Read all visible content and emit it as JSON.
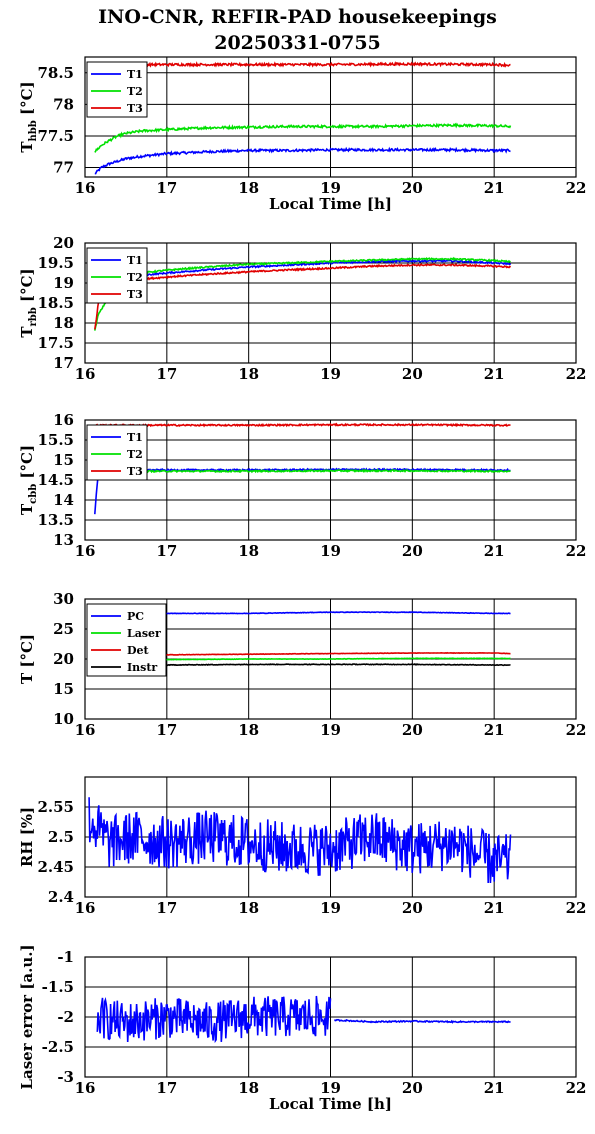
{
  "page": {
    "title_line1": "INO-CNR, REFIR-PAD housekeepings",
    "title_line2": "20250331-0755"
  },
  "chart_data": [
    {
      "id": "hbb",
      "type": "line",
      "ylabel": "T",
      "ylabel_sub": "hbb",
      "ylabel_unit": " [°C]",
      "xlabel": "Local Time [h]",
      "xlim": [
        16,
        22
      ],
      "ylim": [
        76.85,
        78.75
      ],
      "xticks": [
        16,
        17,
        18,
        19,
        20,
        21,
        22
      ],
      "yticks": [
        77,
        77.5,
        78,
        78.5
      ],
      "ytick_labels": [
        "77",
        "77.5",
        "78",
        "78.5"
      ],
      "grid": true,
      "legend": "top-left",
      "series": [
        {
          "name": "T1",
          "color": "#0000ff",
          "x": [
            16.12,
            16.2,
            16.3,
            16.4,
            16.5,
            16.7,
            17,
            17.5,
            18,
            18.5,
            19,
            19.5,
            20,
            20.5,
            21,
            21.2
          ],
          "y": [
            76.9,
            77,
            77.06,
            77.1,
            77.14,
            77.18,
            77.22,
            77.25,
            77.27,
            77.27,
            77.28,
            77.28,
            77.28,
            77.28,
            77.27,
            77.27
          ],
          "noise": 0.018
        },
        {
          "name": "T2",
          "color": "#00e000",
          "x": [
            16.12,
            16.2,
            16.3,
            16.4,
            16.5,
            16.7,
            17,
            17.5,
            18,
            18.5,
            19,
            19.5,
            20,
            20.5,
            21,
            21.2
          ],
          "y": [
            77.25,
            77.35,
            77.43,
            77.5,
            77.54,
            77.58,
            77.6,
            77.63,
            77.64,
            77.65,
            77.65,
            77.65,
            77.66,
            77.67,
            77.66,
            77.65
          ],
          "noise": 0.018
        },
        {
          "name": "T3",
          "color": "#e00000",
          "x": [
            16.12,
            16.5,
            17,
            18,
            19,
            20,
            21,
            21.2
          ],
          "y": [
            78.62,
            78.63,
            78.63,
            78.63,
            78.63,
            78.64,
            78.63,
            78.62
          ],
          "noise": 0.018
        }
      ]
    },
    {
      "id": "rbb",
      "type": "line",
      "ylabel": "T",
      "ylabel_sub": "rbb",
      "ylabel_unit": " [°C]",
      "xlabel": "",
      "xlim": [
        16,
        22
      ],
      "ylim": [
        17,
        20
      ],
      "xticks": [
        16,
        17,
        18,
        19,
        20,
        21,
        22
      ],
      "yticks": [
        17,
        17.5,
        18,
        18.5,
        19,
        19.5,
        20
      ],
      "ytick_labels": [
        "17",
        "17.5",
        "18",
        "18.5",
        "19",
        "19.5",
        "20"
      ],
      "grid": true,
      "legend": "top-left",
      "series": [
        {
          "name": "T1",
          "color": "#0000ff",
          "x": [
            16.45,
            17,
            17.5,
            18,
            18.5,
            19,
            19.5,
            20,
            20.5,
            21,
            21.2
          ],
          "y": [
            19.15,
            19.25,
            19.33,
            19.4,
            19.45,
            19.5,
            19.53,
            19.55,
            19.55,
            19.5,
            19.48
          ],
          "noise": 0.018
        },
        {
          "name": "T2",
          "color": "#00e000",
          "x": [
            16.12,
            16.14,
            16.16,
            16.45,
            17,
            17.5,
            18,
            18.5,
            19,
            19.5,
            20,
            20.5,
            21,
            21.2
          ],
          "y": [
            17.8,
            18.0,
            18.2,
            19.2,
            19.32,
            19.4,
            19.47,
            19.5,
            19.54,
            19.57,
            19.6,
            19.6,
            19.56,
            19.53
          ],
          "noise": 0.018
        },
        {
          "name": "T3",
          "color": "#e00000",
          "x": [
            16.12,
            16.14,
            16.16,
            16.45,
            17,
            17.5,
            18,
            18.5,
            19,
            19.5,
            20,
            20.5,
            21,
            21.2
          ],
          "y": [
            17.85,
            18.1,
            18.5,
            19.05,
            19.15,
            19.22,
            19.28,
            19.33,
            19.37,
            19.42,
            19.45,
            19.45,
            19.42,
            19.4
          ],
          "noise": 0.018
        }
      ]
    },
    {
      "id": "cbb",
      "type": "line",
      "ylabel": "T",
      "ylabel_sub": "cbb",
      "ylabel_unit": " [°C]",
      "xlabel": "",
      "xlim": [
        16,
        22
      ],
      "ylim": [
        13,
        16
      ],
      "xticks": [
        16,
        17,
        18,
        19,
        20,
        21,
        22
      ],
      "yticks": [
        13,
        13.5,
        14,
        14.5,
        15,
        15.5,
        16
      ],
      "ytick_labels": [
        "13",
        "13.5",
        "14",
        "14.5",
        "15",
        "15.5",
        "16"
      ],
      "grid": true,
      "legend": "top-left",
      "series": [
        {
          "name": "T1",
          "color": "#0000ff",
          "x": [
            16.12,
            16.14,
            16.16,
            16.45,
            17,
            18,
            19,
            20,
            21,
            21.2
          ],
          "y": [
            13.65,
            14.2,
            14.6,
            14.75,
            14.75,
            14.75,
            14.76,
            14.76,
            14.75,
            14.75
          ],
          "noise": 0.018
        },
        {
          "name": "T2",
          "color": "#00e000",
          "x": [
            16.45,
            17,
            18,
            19,
            20,
            21,
            21.2
          ],
          "y": [
            14.72,
            14.72,
            14.72,
            14.73,
            14.73,
            14.72,
            14.72
          ],
          "noise": 0.018
        },
        {
          "name": "T3",
          "color": "#e00000",
          "x": [
            16.12,
            17,
            18,
            19,
            20,
            21,
            21.2
          ],
          "y": [
            15.87,
            15.87,
            15.87,
            15.88,
            15.88,
            15.87,
            15.87
          ],
          "noise": 0.018
        }
      ]
    },
    {
      "id": "temps",
      "type": "line",
      "ylabel": "T [°C]",
      "ylabel_sub": "",
      "ylabel_unit": "",
      "xlabel": "",
      "xlim": [
        16,
        22
      ],
      "ylim": [
        10,
        30
      ],
      "xticks": [
        16,
        17,
        18,
        19,
        20,
        21,
        22
      ],
      "yticks": [
        10,
        15,
        20,
        25,
        30
      ],
      "ytick_labels": [
        "10",
        "15",
        "20",
        "25",
        "30"
      ],
      "grid": true,
      "legend": "top-left",
      "series": [
        {
          "name": "PC",
          "color": "#0000ff",
          "x": [
            16.8,
            17,
            18,
            19,
            20,
            21,
            21.2
          ],
          "y": [
            27.6,
            27.6,
            27.6,
            27.8,
            27.8,
            27.6,
            27.6
          ],
          "noise": 0.04
        },
        {
          "name": "Laser",
          "color": "#00e000",
          "x": [
            16.8,
            17,
            18,
            19,
            20,
            21,
            21.2
          ],
          "y": [
            19.8,
            19.9,
            20.0,
            20.0,
            20.1,
            20.1,
            20.1
          ],
          "noise": 0.03
        },
        {
          "name": "Det",
          "color": "#e00000",
          "x": [
            16.8,
            17,
            18,
            19,
            20,
            21,
            21.2
          ],
          "y": [
            20.5,
            20.7,
            20.8,
            20.9,
            21.0,
            21.0,
            20.9
          ],
          "noise": 0.03
        },
        {
          "name": "Instr",
          "color": "#000000",
          "x": [
            16.8,
            17,
            18,
            19,
            20,
            21,
            21.2
          ],
          "y": [
            18.9,
            19.0,
            19.1,
            19.1,
            19.1,
            19.0,
            19.0
          ],
          "noise": 0.05
        }
      ]
    },
    {
      "id": "rh",
      "type": "line",
      "ylabel": "RH [%]",
      "ylabel_sub": "",
      "ylabel_unit": "",
      "xlabel": "",
      "xlim": [
        16,
        22
      ],
      "ylim": [
        2.4,
        2.6
      ],
      "xticks": [
        16,
        17,
        18,
        19,
        20,
        21,
        22
      ],
      "yticks": [
        2.4,
        2.45,
        2.5,
        2.55
      ],
      "ytick_labels": [
        "2.4",
        "2.45",
        "2.5",
        "2.55"
      ],
      "grid": true,
      "legend": "none",
      "series": [
        {
          "name": "",
          "color": "#0000ff",
          "x": [
            16.05,
            16.3,
            16.6,
            17,
            17.5,
            18,
            18.5,
            19,
            19.5,
            20,
            20.5,
            20.8,
            21,
            21.2
          ],
          "y": [
            2.53,
            2.49,
            2.5,
            2.49,
            2.5,
            2.49,
            2.48,
            2.48,
            2.5,
            2.48,
            2.49,
            2.47,
            2.46,
            2.46
          ],
          "noise": 0.045
        }
      ]
    },
    {
      "id": "laser",
      "type": "line",
      "ylabel": "Laser error [a.u.]",
      "ylabel_sub": "",
      "ylabel_unit": "",
      "xlabel": "Local Time [h]",
      "xlim": [
        16,
        22
      ],
      "ylim": [
        -3,
        -1
      ],
      "xticks": [
        16,
        17,
        18,
        19,
        20,
        21,
        22
      ],
      "yticks": [
        -3,
        -2.5,
        -2,
        -1.5,
        -1
      ],
      "ytick_labels": [
        "-3",
        "-2.5",
        "-2",
        "-1.5",
        "-1"
      ],
      "grid": true,
      "legend": "none",
      "series": [
        {
          "name": "",
          "color": "#0000ff",
          "x": [
            16.15,
            16.5,
            17,
            17.5,
            18,
            18.5,
            19.0
          ],
          "y": [
            -2.0,
            -2.1,
            -2.0,
            -2.1,
            -2.0,
            -2.0,
            -2.0
          ],
          "noise": 0.35
        },
        {
          "name": "",
          "color": "#0000ff",
          "x": [
            19.05,
            19.5,
            20,
            20.5,
            21,
            21.2
          ],
          "y": [
            -2.05,
            -2.08,
            -2.07,
            -2.08,
            -2.08,
            -2.08
          ],
          "noise": 0.01
        }
      ]
    }
  ]
}
